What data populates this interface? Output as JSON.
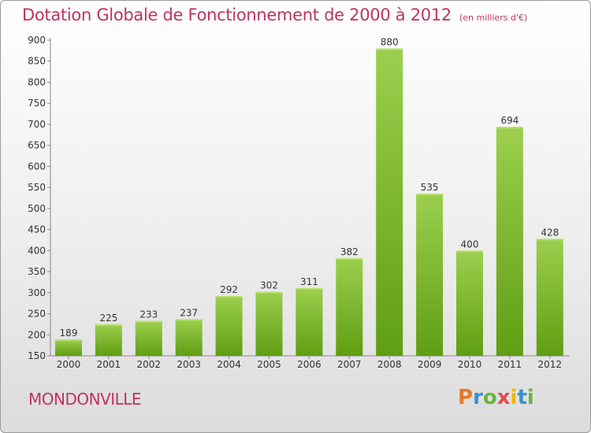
{
  "chart_data": {
    "type": "bar",
    "title": "Dotation Globale de Fonctionnement de 2000 à 2012",
    "unit_note": "(en milliers d'€)",
    "categories": [
      "2000",
      "2001",
      "2002",
      "2003",
      "2004",
      "2005",
      "2006",
      "2007",
      "2008",
      "2009",
      "2010",
      "2011",
      "2012"
    ],
    "values": [
      189,
      225,
      233,
      237,
      292,
      302,
      311,
      382,
      880,
      535,
      400,
      694,
      428
    ],
    "ylim": [
      150,
      900
    ],
    "yticks": [
      150,
      200,
      250,
      300,
      350,
      400,
      450,
      500,
      550,
      600,
      650,
      700,
      750,
      800,
      850,
      900
    ],
    "grid": false,
    "bar_color": "#7dbb2a"
  },
  "commune": "MONDONVILLE",
  "logo": {
    "letters": [
      "P",
      "r",
      "o",
      "x",
      "i",
      "t",
      "i"
    ],
    "colors": [
      "#e8782a",
      "#3a8fd0",
      "#6cb33f",
      "#e34b4b",
      "#f2b600",
      "#3a8fd0",
      "#6cb33f"
    ]
  },
  "colors": {
    "accent": "#c0335f"
  }
}
